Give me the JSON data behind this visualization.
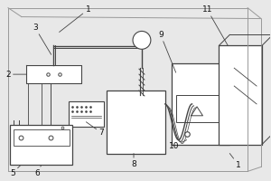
{
  "bg_color": "#e8e8e8",
  "line_color": "#444444",
  "label_color": "#111111",
  "border_color": "#999999"
}
